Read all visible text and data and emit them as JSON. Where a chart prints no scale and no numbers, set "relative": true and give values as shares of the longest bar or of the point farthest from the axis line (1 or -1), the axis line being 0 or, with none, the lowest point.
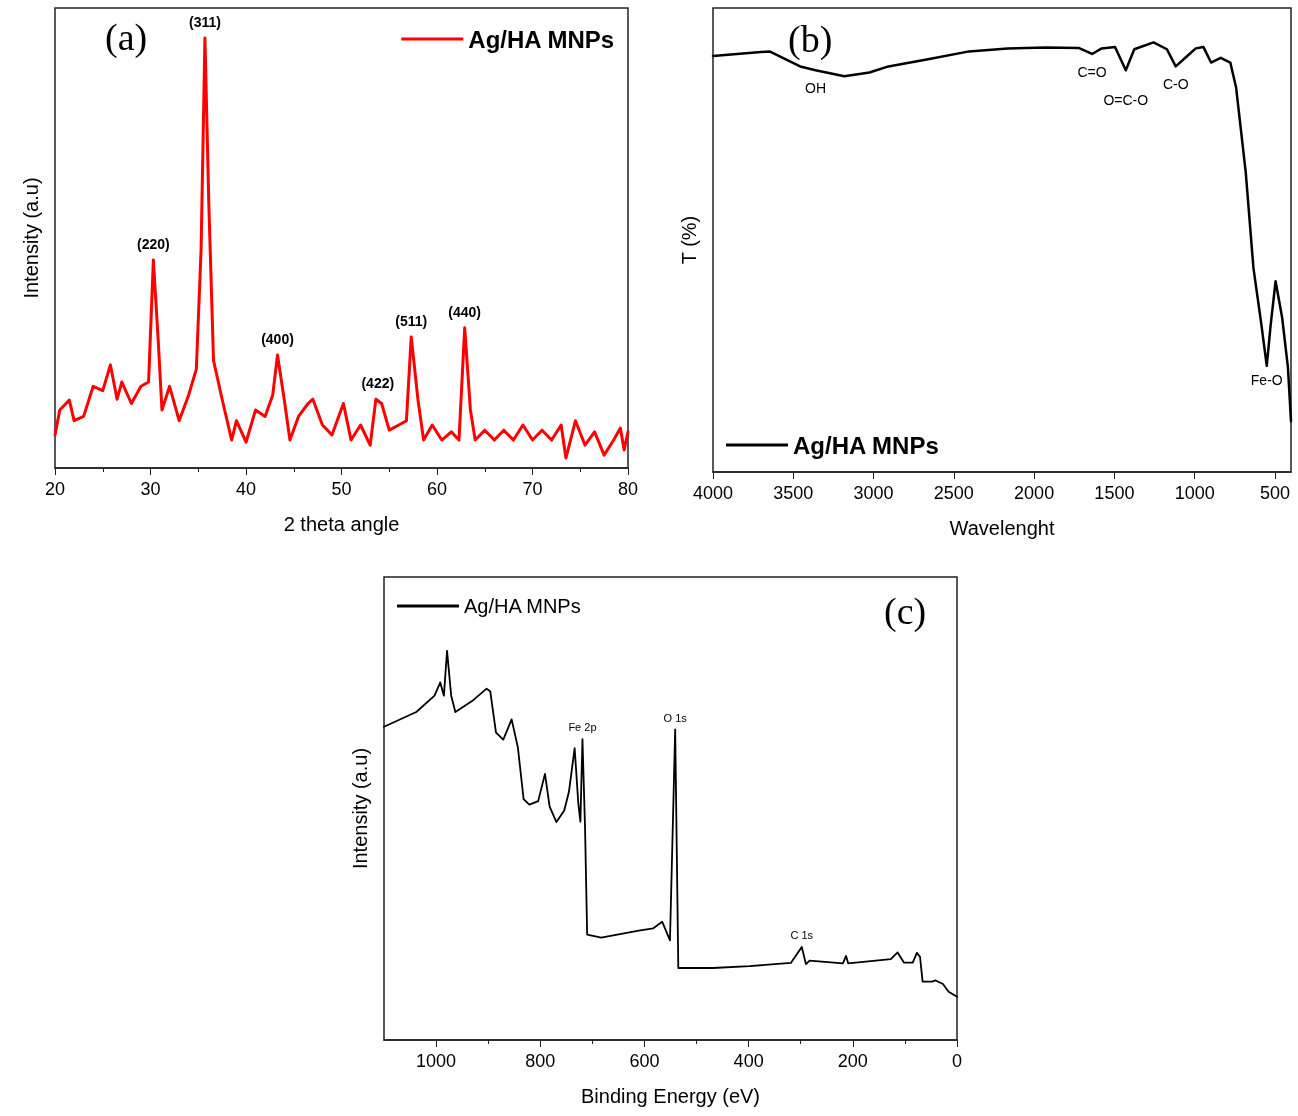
{
  "chart_data": [
    {
      "type": "line",
      "xlabel": "2 theta angle",
      "ylabel": "Intensity (a.u)",
      "relative": true,
      "tick_labels": "x",
      "legend": "top right",
      "marker": "none",
      "line_style": "solid",
      "xlim": [
        20,
        80
      ],
      "xticks": [
        20,
        30,
        40,
        50,
        60,
        70,
        80
      ],
      "annotations": [
        "(a)",
        {
          "text": "(220)",
          "x": 30.3,
          "y": 0.484
        },
        {
          "text": "(311)",
          "x": 35.7,
          "y": 1.0
        },
        {
          "text": "(400)",
          "x": 43.3,
          "y": 0.263
        },
        {
          "text": "(422)",
          "x": 53.8,
          "y": 0.16
        },
        {
          "text": "(511)",
          "x": 57.3,
          "y": 0.305
        },
        {
          "text": "(440)",
          "x": 62.9,
          "y": 0.326
        }
      ],
      "series": [
        {
          "name": "Ag/HA MNPs",
          "color": "#ff0000",
          "x": [
            20,
            20.5,
            21.5,
            22,
            23,
            24,
            25,
            25.8,
            26.5,
            27,
            28,
            29,
            29.8,
            30.3,
            30.8,
            31.2,
            32,
            33,
            34,
            34.8,
            35.3,
            35.7,
            36.1,
            36.6,
            37.5,
            38.5,
            39,
            40,
            41,
            42,
            42.8,
            43.3,
            44,
            44.6,
            45.5,
            46.5,
            47,
            48,
            49,
            50.2,
            51,
            52,
            53,
            53.6,
            54.2,
            55,
            56,
            56.8,
            57.3,
            58,
            58.6,
            59.5,
            60.5,
            61.5,
            62.3,
            62.9,
            63.5,
            64,
            65,
            66,
            67,
            68,
            69,
            70,
            71,
            72,
            73,
            73.5,
            74.5,
            75.5,
            76.5,
            77.5,
            78.5,
            79.2,
            79.6,
            80
          ],
          "values": [
            0.077,
            0.135,
            0.158,
            0.11,
            0.12,
            0.19,
            0.18,
            0.24,
            0.16,
            0.2,
            0.15,
            0.19,
            0.2,
            0.484,
            0.3,
            0.135,
            0.19,
            0.11,
            0.17,
            0.23,
            0.51,
            1.0,
            0.62,
            0.25,
            0.16,
            0.065,
            0.11,
            0.06,
            0.135,
            0.12,
            0.17,
            0.263,
            0.16,
            0.065,
            0.12,
            0.15,
            0.16,
            0.1,
            0.077,
            0.15,
            0.065,
            0.1,
            0.053,
            0.16,
            0.15,
            0.088,
            0.1,
            0.11,
            0.305,
            0.16,
            0.065,
            0.1,
            0.065,
            0.084,
            0.065,
            0.326,
            0.135,
            0.065,
            0.088,
            0.065,
            0.088,
            0.065,
            0.1,
            0.065,
            0.088,
            0.065,
            0.1,
            0.023,
            0.11,
            0.053,
            0.084,
            0.03,
            0.065,
            0.093,
            0.042,
            0.084
          ]
        }
      ]
    },
    {
      "type": "line",
      "xlabel": "Wavelenght",
      "ylabel": "T (%)",
      "relative": true,
      "tick_labels": "x",
      "legend": "bottom left",
      "marker": "none",
      "line_style": "solid",
      "xlim": [
        4000,
        400
      ],
      "xticks": [
        4000,
        3500,
        3000,
        2500,
        2000,
        1500,
        1000,
        500
      ],
      "annotations": [
        "(b)",
        {
          "text": "OH",
          "x": 3361,
          "y": 0.935
        },
        {
          "text": "C=O",
          "x": 1639,
          "y": 0.973
        },
        {
          "text": "O=C-O",
          "x": 1429,
          "y": 0.935
        },
        {
          "text": "C-O",
          "x": 1118,
          "y": 0.944
        },
        {
          "text": "Fe-O",
          "x": 551,
          "y": 0.247
        }
      ],
      "series": [
        {
          "name": "Ag/HA MNPs",
          "color": "#000000",
          "x": [
            4000,
            3648,
            3457,
            3361,
            3182,
            3026,
            2907,
            2644,
            2405,
            2165,
            1926,
            1723,
            1639,
            1579,
            1496,
            1429,
            1376,
            1256,
            1173,
            1118,
            1053,
            993,
            945,
            898,
            838,
            778,
            742,
            682,
            634,
            587,
            551,
            527,
            496,
            455,
            419,
            400
          ],
          "values": [
            0.968,
            0.979,
            0.944,
            0.935,
            0.921,
            0.93,
            0.944,
            0.962,
            0.979,
            0.986,
            0.988,
            0.987,
            0.973,
            0.986,
            0.989,
            0.935,
            0.984,
            1.0,
            0.984,
            0.944,
            0.966,
            0.986,
            0.989,
            0.953,
            0.964,
            0.953,
            0.895,
            0.698,
            0.475,
            0.35,
            0.247,
            0.341,
            0.444,
            0.359,
            0.243,
            0.118
          ]
        }
      ]
    },
    {
      "type": "line",
      "xlabel": "Binding Energy (eV)",
      "ylabel": "Intensity (a.u)",
      "relative": true,
      "tick_labels": "x",
      "legend": "top left",
      "marker": "none",
      "line_style": "solid",
      "xlim": [
        1100,
        0
      ],
      "xticks": [
        1000,
        800,
        600,
        400,
        200,
        0
      ],
      "annotations": [
        "(c)",
        {
          "text": "Fe 2p",
          "x": 719,
          "y": 0.773
        },
        {
          "text": "O 1s",
          "x": 541,
          "y": 0.798
        },
        {
          "text": "C 1s",
          "x": 298,
          "y": 0.239
        }
      ],
      "series": [
        {
          "name": "Ag/HA MNPs",
          "color": "#000000",
          "x": [
            1100,
            1038,
            1003,
            992,
            985,
            979,
            971,
            963,
            931,
            903,
            896,
            885,
            871,
            855,
            843,
            832,
            821,
            804,
            791,
            782,
            769,
            754,
            745,
            734,
            727,
            723,
            719,
            714,
            710,
            683,
            611,
            583,
            566,
            551,
            541,
            535,
            469,
            398,
            319,
            298,
            290,
            283,
            219,
            213,
            209,
            127,
            114,
            102,
            85,
            77,
            71,
            66,
            48,
            41,
            27,
            16,
            0
          ],
          "values": [
            0.805,
            0.843,
            0.885,
            0.919,
            0.885,
            1.0,
            0.885,
            0.843,
            0.871,
            0.903,
            0.896,
            0.79,
            0.772,
            0.824,
            0.752,
            0.619,
            0.605,
            0.614,
            0.684,
            0.6,
            0.56,
            0.59,
            0.638,
            0.75,
            0.609,
            0.561,
            0.773,
            0.543,
            0.271,
            0.263,
            0.281,
            0.287,
            0.304,
            0.256,
            0.798,
            0.185,
            0.185,
            0.19,
            0.198,
            0.239,
            0.195,
            0.204,
            0.197,
            0.216,
            0.197,
            0.208,
            0.225,
            0.199,
            0.199,
            0.224,
            0.214,
            0.15,
            0.15,
            0.153,
            0.144,
            0.124,
            0.111
          ]
        }
      ]
    }
  ]
}
